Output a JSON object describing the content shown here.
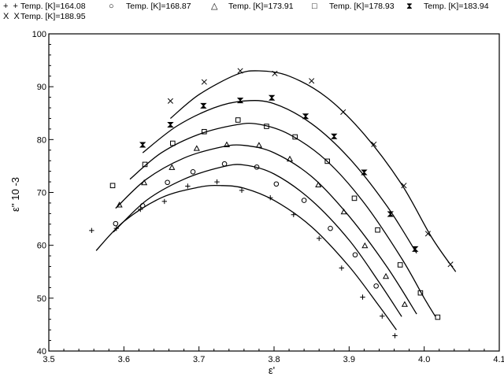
{
  "chart_data": {
    "type": "scatter",
    "xlabel": "ε'",
    "ylabel": "ε'' 10 -3",
    "xlim": [
      3.5,
      4.1
    ],
    "ylim": [
      40,
      100
    ],
    "xticks": [
      "3.5",
      "3.6",
      "3.7",
      "3.8",
      "3.9",
      "4.0",
      "4.1"
    ],
    "yticks": [
      "40",
      "50",
      "60",
      "70",
      "80",
      "90",
      "100"
    ],
    "grid": false,
    "legend_position": "top",
    "series": [
      {
        "name": "Temp. [K]=164.08",
        "marker": "+",
        "points": [
          [
            3.557,
            62.8
          ],
          [
            3.59,
            63.2
          ],
          [
            3.622,
            66.8
          ],
          [
            3.654,
            68.3
          ],
          [
            3.685,
            71.2
          ],
          [
            3.724,
            72.0
          ],
          [
            3.757,
            70.4
          ],
          [
            3.795,
            69.0
          ],
          [
            3.826,
            65.8
          ],
          [
            3.86,
            61.3
          ],
          [
            3.89,
            55.7
          ],
          [
            3.918,
            50.2
          ],
          [
            3.944,
            46.6
          ],
          [
            3.961,
            42.9
          ]
        ],
        "curve": [
          [
            3.563,
            59.0
          ],
          [
            3.6,
            64.5
          ],
          [
            3.65,
            69.0
          ],
          [
            3.7,
            71.0
          ],
          [
            3.73,
            71.3
          ],
          [
            3.76,
            70.8
          ],
          [
            3.8,
            68.5
          ],
          [
            3.85,
            63.5
          ],
          [
            3.9,
            56.0
          ],
          [
            3.94,
            48.5
          ],
          [
            3.963,
            44.0
          ]
        ]
      },
      {
        "name": "Temp. [K]=168.87",
        "marker": "o",
        "points": [
          [
            3.589,
            64.1
          ],
          [
            3.625,
            67.5
          ],
          [
            3.658,
            71.9
          ],
          [
            3.692,
            73.9
          ],
          [
            3.734,
            75.4
          ],
          [
            3.777,
            74.8
          ],
          [
            3.803,
            71.6
          ],
          [
            3.84,
            68.5
          ],
          [
            3.875,
            63.2
          ],
          [
            3.908,
            58.2
          ],
          [
            3.936,
            52.3
          ]
        ],
        "curve": [
          [
            3.586,
            62.5
          ],
          [
            3.63,
            68.5
          ],
          [
            3.68,
            72.5
          ],
          [
            3.73,
            74.8
          ],
          [
            3.76,
            75.2
          ],
          [
            3.8,
            73.5
          ],
          [
            3.85,
            68.5
          ],
          [
            3.9,
            61.0
          ],
          [
            3.94,
            53.0
          ],
          [
            3.97,
            46.5
          ]
        ]
      },
      {
        "name": "Temp. [K]=173.91",
        "marker": "△",
        "points": [
          [
            3.594,
            67.6
          ],
          [
            3.627,
            71.8
          ],
          [
            3.664,
            74.7
          ],
          [
            3.697,
            78.3
          ],
          [
            3.737,
            79.0
          ],
          [
            3.78,
            78.9
          ],
          [
            3.821,
            76.3
          ],
          [
            3.859,
            71.4
          ],
          [
            3.893,
            66.3
          ],
          [
            3.921,
            59.9
          ],
          [
            3.949,
            54.1
          ],
          [
            3.974,
            48.8
          ]
        ],
        "curve": [
          [
            3.589,
            67.0
          ],
          [
            3.63,
            72.5
          ],
          [
            3.68,
            76.5
          ],
          [
            3.73,
            78.6
          ],
          [
            3.76,
            78.9
          ],
          [
            3.8,
            77.5
          ],
          [
            3.85,
            73.0
          ],
          [
            3.9,
            65.5
          ],
          [
            3.95,
            56.0
          ],
          [
            3.99,
            47.0
          ]
        ]
      },
      {
        "name": "Temp. [K]=178.93",
        "marker": "□",
        "points": [
          [
            3.585,
            71.3
          ],
          [
            3.628,
            75.3
          ],
          [
            3.665,
            79.3
          ],
          [
            3.707,
            81.5
          ],
          [
            3.752,
            83.7
          ],
          [
            3.79,
            82.5
          ],
          [
            3.828,
            80.5
          ],
          [
            3.871,
            75.9
          ],
          [
            3.907,
            68.9
          ],
          [
            3.938,
            62.9
          ],
          [
            3.968,
            56.3
          ],
          [
            3.995,
            51.0
          ],
          [
            4.018,
            46.4
          ]
        ],
        "curve": [
          [
            3.608,
            72.5
          ],
          [
            3.65,
            77.5
          ],
          [
            3.7,
            81.0
          ],
          [
            3.75,
            82.8
          ],
          [
            3.78,
            82.9
          ],
          [
            3.82,
            81.0
          ],
          [
            3.87,
            76.0
          ],
          [
            3.92,
            68.0
          ],
          [
            3.97,
            57.5
          ],
          [
            4.0,
            50.0
          ],
          [
            4.015,
            46.5
          ]
        ]
      },
      {
        "name": "Temp. [K]=183.94",
        "marker": "⧗",
        "points": [
          [
            3.625,
            79.0
          ],
          [
            3.662,
            82.8
          ],
          [
            3.706,
            86.4
          ],
          [
            3.755,
            87.4
          ],
          [
            3.797,
            87.9
          ],
          [
            3.842,
            84.4
          ],
          [
            3.88,
            80.6
          ],
          [
            3.92,
            73.8
          ],
          [
            3.955,
            65.9
          ],
          [
            3.988,
            59.3
          ]
        ],
        "curve": [
          [
            3.625,
            77.5
          ],
          [
            3.67,
            82.5
          ],
          [
            3.72,
            86.0
          ],
          [
            3.76,
            87.3
          ],
          [
            3.8,
            86.8
          ],
          [
            3.85,
            83.0
          ],
          [
            3.9,
            76.5
          ],
          [
            3.95,
            67.5
          ],
          [
            3.99,
            58.5
          ]
        ]
      },
      {
        "name": "Temp. [K]=188.95",
        "marker": "X",
        "points": [
          [
            3.662,
            87.3
          ],
          [
            3.707,
            90.9
          ],
          [
            3.755,
            93.0
          ],
          [
            3.801,
            92.5
          ],
          [
            3.85,
            91.1
          ],
          [
            3.892,
            85.2
          ],
          [
            3.933,
            79.1
          ],
          [
            3.973,
            71.3
          ],
          [
            4.005,
            62.2
          ],
          [
            4.035,
            56.4
          ]
        ],
        "curve": [
          [
            3.662,
            84.0
          ],
          [
            3.7,
            88.5
          ],
          [
            3.75,
            92.3
          ],
          [
            3.78,
            93.0
          ],
          [
            3.82,
            92.0
          ],
          [
            3.87,
            88.0
          ],
          [
            3.92,
            81.0
          ],
          [
            3.97,
            71.5
          ],
          [
            4.01,
            61.5
          ],
          [
            4.042,
            55.0
          ]
        ]
      }
    ]
  }
}
